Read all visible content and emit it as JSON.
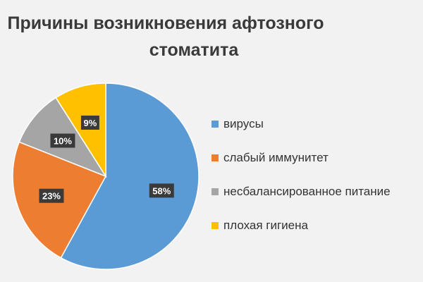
{
  "chart_data": {
    "type": "pie",
    "title_line1": "Причины возникновения афтозного",
    "title_line2": "стоматита",
    "categories": [
      "вирусы",
      "слабый иммунитет",
      "несбалансированное питание",
      "плохая гигиена"
    ],
    "values": [
      58,
      23,
      10,
      9
    ],
    "labels": [
      "58%",
      "23%",
      "10%",
      "9%"
    ],
    "colors": [
      "#5b9bd5",
      "#ed7d31",
      "#a5a5a5",
      "#ffc000"
    ],
    "legend_position": "right"
  }
}
